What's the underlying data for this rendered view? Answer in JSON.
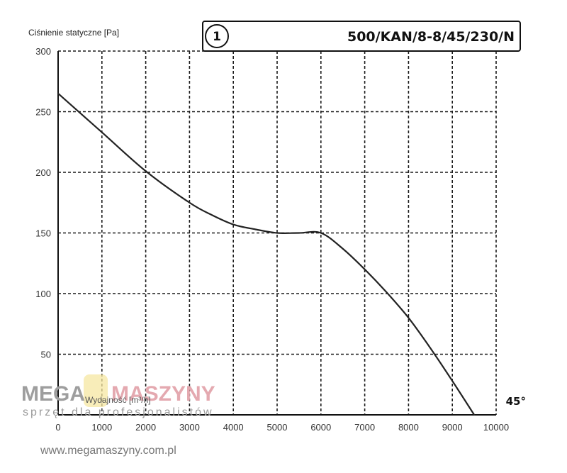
{
  "chart_data": {
    "type": "line",
    "ylabel": "Ciśnienie statyczne [Pa]",
    "xlabel": "Wydajność [m³/h]",
    "model": "500/KAN/8-8/45/230/N",
    "badge": "1",
    "annotation": "45°",
    "xlim": [
      0,
      10000
    ],
    "ylim": [
      0,
      300
    ],
    "xticks": [
      0,
      1000,
      2000,
      3000,
      4000,
      5000,
      6000,
      7000,
      8000,
      9000,
      10000
    ],
    "yticks": [
      50,
      100,
      150,
      200,
      250,
      300
    ],
    "grid": true,
    "series": [
      {
        "x": [
          0,
          1000,
          2000,
          3000,
          3500,
          4000,
          4500,
          5000,
          5500,
          6000,
          6500,
          7000,
          7500,
          8000,
          8500,
          9000,
          9500
        ],
        "y": [
          265,
          233,
          201,
          175,
          165,
          157,
          153,
          150,
          150,
          150,
          137,
          120,
          101,
          80,
          55,
          28,
          0
        ]
      }
    ]
  },
  "watermark": {
    "brand_left": "MEGA",
    "brand_right": "MASZYNY",
    "tagline": "sprzęt dla profesjonalistów"
  },
  "footer": {
    "url": "www.megamaszyny.com.pl"
  },
  "colors": {
    "curve": "#222222",
    "grid": "#1a1a1a",
    "watermark_red": "#e4a9b0"
  }
}
